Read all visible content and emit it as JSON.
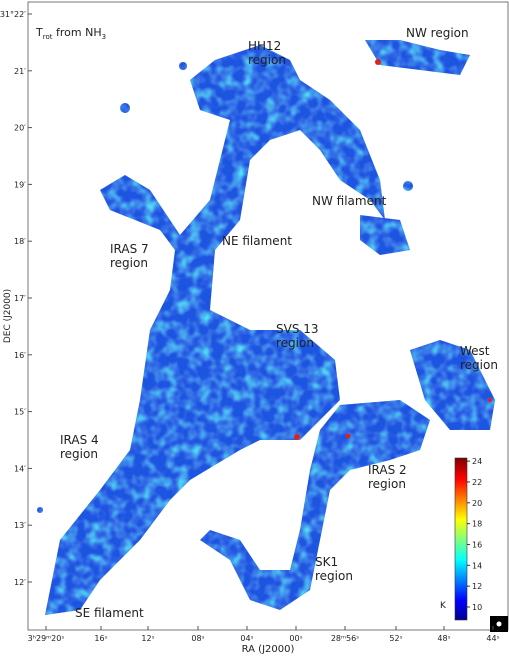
{
  "chart_data": {
    "type": "map",
    "title_parts": [
      "T",
      "rot",
      " from NH",
      "3"
    ],
    "xlabel": "RA (J2000)",
    "ylabel": "DEC (J2000)",
    "xtick_labels": [
      "3ʰ29ᵐ20ˢ",
      "16ˢ",
      "12ˢ",
      "08ˢ",
      "04ˢ",
      "00ˢ",
      "28ᵐ56ˢ",
      "52ˢ",
      "48ˢ",
      "44ˢ"
    ],
    "ytick_labels": [
      "31°22′",
      "21′",
      "20′",
      "19′",
      "18′",
      "17′",
      "16′",
      "15′",
      "14′",
      "13′",
      "12′"
    ],
    "annotations": [
      {
        "lines": [
          "HH12",
          "region"
        ]
      },
      {
        "lines": [
          "NW region"
        ]
      },
      {
        "lines": [
          "NW filament"
        ]
      },
      {
        "lines": [
          "NE filament"
        ]
      },
      {
        "lines": [
          "IRAS 7",
          "region"
        ]
      },
      {
        "lines": [
          "SVS 13",
          "region"
        ]
      },
      {
        "lines": [
          "West",
          "region"
        ]
      },
      {
        "lines": [
          "IRAS 4",
          "region"
        ]
      },
      {
        "lines": [
          "IRAS 2",
          "region"
        ]
      },
      {
        "lines": [
          "SK1",
          "region"
        ]
      },
      {
        "lines": [
          "SE filament"
        ]
      }
    ],
    "colorbar": {
      "label": "K",
      "lim": [
        8.75,
        24.3
      ],
      "ticks": [
        10,
        12,
        14,
        16,
        18,
        20,
        22,
        24
      ]
    }
  }
}
